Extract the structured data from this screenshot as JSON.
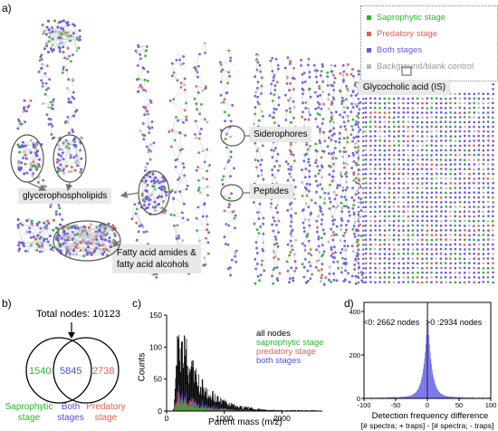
{
  "panel_a": {
    "letter": "a)",
    "legend": [
      {
        "label": "Saprophytic stage",
        "color": "#2db52d"
      },
      {
        "label": "Predatory stage",
        "color": "#e06050"
      },
      {
        "label": "Both stages",
        "color": "#6a5adc"
      },
      {
        "label": "Background/blank control",
        "color": "#b8b8b8"
      }
    ],
    "callouts": {
      "glycocholic": "Glycocholic acid (IS)",
      "siderophores": "Siderophores",
      "peptides": "Peptides",
      "glycerophospholipids": "glycerophospholipids",
      "fatty_line1": "Fatty acid amides &",
      "fatty_line2": "fatty acid alcohols"
    }
  },
  "panel_b": {
    "letter": "b)",
    "total": "Total nodes: 10123",
    "left_count": "1540",
    "mid_count": "5845",
    "right_count": "2738",
    "left_label_1": "Saprophytic",
    "left_label_2": "stage",
    "mid_label_1": "Both",
    "mid_label_2": "stages",
    "right_label_1": "Predatory",
    "right_label_2": "stage"
  },
  "panel_c": {
    "letter": "c)",
    "chart_data": {
      "type": "bar",
      "xlabel": "Parent mass (m/z)",
      "ylabel": "Counts",
      "xlim": [
        0,
        2700
      ],
      "ylim": [
        0,
        150
      ],
      "xticks": [
        0,
        1000,
        2000
      ],
      "yticks": [
        0,
        50,
        100,
        150
      ],
      "legend_placement": "top-right",
      "series": [
        {
          "name": "all nodes",
          "color": "#000000"
        },
        {
          "name": "saprophytic stage",
          "color": "#2db52d"
        },
        {
          "name": "predatory stage",
          "color": "#e06050"
        },
        {
          "name": "both stages",
          "color": "#5050e0"
        }
      ]
    }
  },
  "panel_d": {
    "letter": "d)",
    "left_note": "<0: 2662 nodes",
    "right_note": ">0 :2934 nodes",
    "chart_data": {
      "type": "bar",
      "xlabel": "Detection frequency difference",
      "xlabel2": "[# spectra; + traps] - [# spectra; - traps]",
      "xlim": [
        -100,
        100
      ],
      "ylim": [
        0,
        400
      ],
      "xticks": [
        -100,
        -50,
        0,
        50,
        100
      ],
      "yticks": [
        0,
        200,
        400
      ]
    }
  }
}
